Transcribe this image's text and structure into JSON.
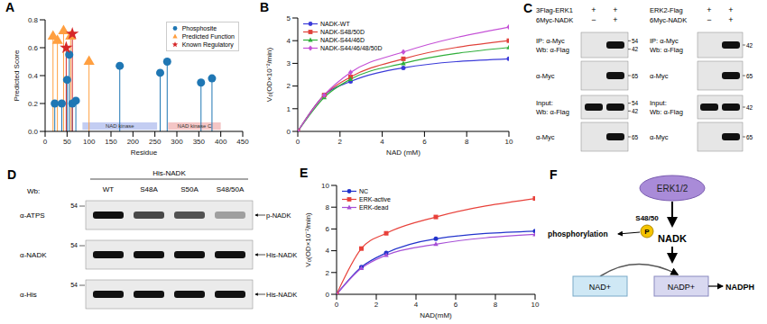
{
  "chart_data": [
    {
      "panel": "A",
      "type": "lollipop",
      "xlabel": "Residue",
      "ylabel": "Predicted Score",
      "xlim": [
        0,
        450
      ],
      "xticks": [
        0,
        50,
        100,
        150,
        200,
        250,
        300,
        350,
        400,
        450
      ],
      "ylim": [
        0,
        0.8
      ],
      "yticks": [
        {
          "value": 0,
          "label": "0.0"
        },
        0.2,
        0.4,
        0.6,
        0.8
      ],
      "legend": "upper right",
      "series": [
        {
          "name": "Phosphosite",
          "color": "#1f77b4",
          "marker": "circle",
          "x": [
            22,
            38,
            50,
            55,
            62,
            70,
            170,
            262,
            278,
            355,
            380
          ],
          "values": [
            0.2,
            0.2,
            0.37,
            0.55,
            0.2,
            0.22,
            0.47,
            0.42,
            0.5,
            0.35,
            0.38
          ]
        },
        {
          "name": "Predicted Function",
          "color": "#ff9f40",
          "marker": "triangle",
          "x": [
            18,
            28,
            42,
            58,
            100
          ],
          "values": [
            0.68,
            0.65,
            0.72,
            0.68,
            0.5
          ]
        },
        {
          "name": "Known Regulatory",
          "color": "#d62728",
          "marker": "star",
          "x": [
            48,
            62
          ],
          "values": [
            0.6,
            0.7
          ]
        }
      ],
      "domains": [
        {
          "name": "NAD kinase",
          "start": 85,
          "end": 255,
          "color": "#b8c4f0"
        },
        {
          "name": "NAD kinase C",
          "start": 280,
          "end": 400,
          "color": "#f2bcbc"
        }
      ]
    },
    {
      "panel": "B",
      "type": "line",
      "xlabel": "NAD (mM)",
      "ylabel": "V₀(OD×10⁻²/min)",
      "x": [
        0,
        1.25,
        2.5,
        5,
        10
      ],
      "xlim": [
        0,
        10
      ],
      "xticks": [
        0,
        2,
        4,
        6,
        8,
        10
      ],
      "ylim": [
        0,
        5
      ],
      "yticks": [
        0,
        1,
        2,
        3,
        4,
        5
      ],
      "legend": "upper left",
      "series": [
        {
          "name": "NADK-WT",
          "color": "#3b3bd9",
          "marker": "circle",
          "values": [
            0,
            1.6,
            2.2,
            2.8,
            3.2
          ]
        },
        {
          "name": "NADK-S48/50D",
          "color": "#e0413a",
          "marker": "square",
          "values": [
            0,
            1.6,
            2.4,
            3.2,
            4.0
          ]
        },
        {
          "name": "NADK-S44/46D",
          "color": "#2fae3a",
          "marker": "triangle",
          "values": [
            0,
            1.5,
            2.3,
            3.0,
            3.7
          ]
        },
        {
          "name": "NADK-S44/46/48/50D",
          "color": "#c44fd6",
          "marker": "diamond",
          "values": [
            0,
            1.6,
            2.6,
            3.5,
            4.6
          ]
        }
      ]
    },
    {
      "panel": "E",
      "type": "line",
      "xlabel": "NAD(mM)",
      "ylabel": "V₀(OD×10⁻²/min)",
      "x": [
        0,
        1.25,
        2.5,
        5,
        10
      ],
      "xlim": [
        0,
        10
      ],
      "xticks": [
        0,
        2,
        4,
        6,
        8,
        10
      ],
      "ylim": [
        0,
        10
      ],
      "yticks": [
        0,
        2,
        4,
        6,
        8,
        10
      ],
      "legend": "upper left",
      "series": [
        {
          "name": "NC",
          "color": "#2233cc",
          "marker": "circle",
          "values": [
            0,
            2.5,
            3.8,
            5.1,
            5.8
          ]
        },
        {
          "name": "ERK-active",
          "color": "#e8413a",
          "marker": "square",
          "values": [
            0,
            4.2,
            5.6,
            7.1,
            8.8
          ]
        },
        {
          "name": "ERK-dead",
          "color": "#a64fd6",
          "marker": "triangle",
          "values": [
            0,
            2.4,
            3.6,
            4.6,
            5.5
          ]
        }
      ]
    }
  ],
  "blot_C": {
    "panel": "C",
    "groups": [
      {
        "lanes": [
          {
            "name": "3Flag-ERK1",
            "signs": [
              "+",
              "+"
            ]
          },
          {
            "name": "6Myc-NADK",
            "signs": [
              "−",
              "+"
            ]
          }
        ],
        "rows": [
          {
            "labels": [
              "IP: α-Myc",
              "Wb: α-Flag"
            ],
            "markers": [
              54,
              42
            ],
            "bands": [
              0,
              1
            ]
          },
          {
            "labels": [
              "α-Myc"
            ],
            "markers": [
              65
            ],
            "bands": [
              0,
              1
            ]
          },
          {
            "labels": [
              "Input:",
              "Wb: α-Flag"
            ],
            "markers": [
              54,
              42
            ],
            "bands": [
              1,
              1
            ]
          },
          {
            "labels": [
              "α-Myc"
            ],
            "markers": [
              65
            ],
            "bands": [
              0,
              1
            ]
          }
        ]
      },
      {
        "lanes": [
          {
            "name": "ERK2-Flag",
            "signs": [
              "+",
              "+"
            ]
          },
          {
            "name": "6Myc-NADK",
            "signs": [
              "−",
              "+"
            ]
          }
        ],
        "rows": [
          {
            "labels": [
              "IP: α-Myc",
              "Wb: α-Flag"
            ],
            "markers": [
              42
            ],
            "bands": [
              0,
              1
            ]
          },
          {
            "labels": [
              "α-Myc"
            ],
            "markers": [
              65
            ],
            "bands": [
              0,
              1
            ]
          },
          {
            "labels": [
              "Input:",
              "Wb: α-Flag"
            ],
            "markers": [
              42
            ],
            "bands": [
              1,
              1
            ]
          },
          {
            "labels": [
              "α-Myc"
            ],
            "markers": [
              65
            ],
            "bands": [
              0,
              1
            ]
          }
        ]
      }
    ]
  },
  "blot_D": {
    "panel": "D",
    "wb": "Wb:",
    "header": "His-NADK",
    "lanes": [
      "WT",
      "S48A",
      "S50A",
      "S48/50A"
    ],
    "rows": [
      {
        "label": "α-ATPS",
        "marker": 54,
        "annotation": "p-NADK",
        "bands": [
          1,
          0.75,
          0.7,
          0.35
        ]
      },
      {
        "label": "α-NADK",
        "marker": 54,
        "annotation": "His-NADK",
        "bands": [
          1,
          1,
          1,
          1
        ]
      },
      {
        "label": "α-His",
        "marker": 54,
        "annotation": "His-NADK",
        "bands": [
          1,
          1,
          1,
          1
        ]
      }
    ]
  },
  "diagram": {
    "panel": "F",
    "kinase": "ERK1/2",
    "target": "NADK",
    "site": "S48/50",
    "phospho": "P",
    "process": "phosphorylation",
    "substrate": "NAD+",
    "product": "NADP+",
    "final": "NADPH"
  }
}
